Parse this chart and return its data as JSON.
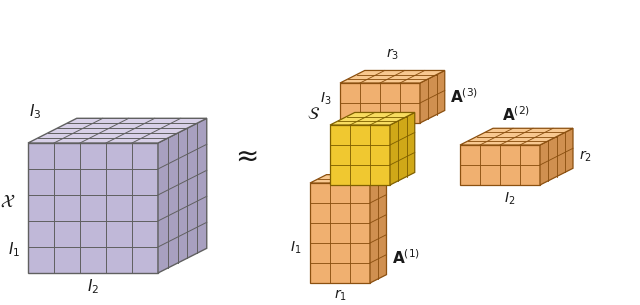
{
  "bg_color": "#ffffff",
  "purple_face": "#c0b8d8",
  "purple_top": "#d8d0e8",
  "purple_side": "#a8a0c0",
  "purple_edge": "#606060",
  "orange_face": "#f0b070",
  "orange_top": "#f8c890",
  "orange_side": "#d09050",
  "orange_edge": "#8b5010",
  "yellow_face": "#f0c830",
  "yellow_top": "#f8dc60",
  "yellow_side": "#d0a818",
  "yellow_edge": "#806000",
  "text_color": "#1a1a1a",
  "approx_symbol": "≈"
}
